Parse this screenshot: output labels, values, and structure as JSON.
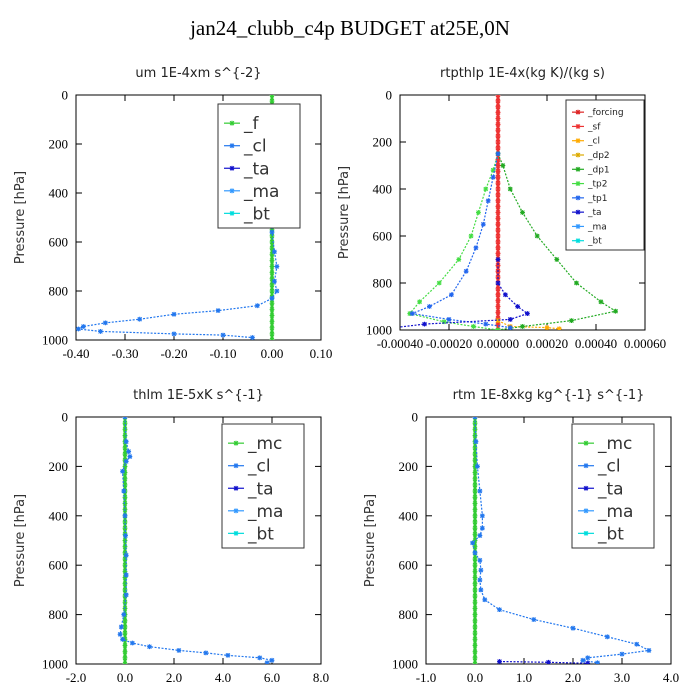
{
  "title": "jan24_clubb_c4p  BUDGET at25E,0N",
  "chart_data": [
    {
      "type": "line",
      "title": "um   1E-4xm s^{-2}",
      "ylabel": "Pressure [hPa]",
      "xlim": [
        -0.4,
        0.1
      ],
      "ylim": [
        1000,
        0
      ],
      "xticks": [
        "-0.40",
        "-0.30",
        "-0.20",
        "-0.10",
        "0.00",
        "0.10"
      ],
      "xtick_values": [
        -0.4,
        -0.3,
        -0.2,
        -0.1,
        0.0,
        0.1
      ],
      "yticks": [
        "0",
        "200",
        "400",
        "600",
        "800",
        "1000"
      ],
      "ytick_values": [
        0,
        200,
        400,
        600,
        800,
        1000
      ],
      "legend": {
        "position": "top-right",
        "size": "large"
      },
      "series": [
        {
          "name": "_f",
          "color": "#33cc33",
          "points": [
            [
              0,
              0
            ],
            [
              0,
              150
            ],
            [
              0,
              300
            ],
            [
              0,
              500
            ],
            [
              0,
              700
            ],
            [
              0,
              900
            ],
            [
              0,
              1000
            ]
          ]
        },
        {
          "name": "_cl",
          "color": "#2277ee",
          "points": [
            [
              0,
              50
            ],
            [
              0.005,
              110
            ],
            [
              0.025,
              130
            ],
            [
              0.035,
              150
            ],
            [
              0.025,
              170
            ],
            [
              0.005,
              195
            ],
            [
              0.01,
              230
            ],
            [
              0.005,
              280
            ],
            [
              0,
              330
            ],
            [
              -0.002,
              400
            ],
            [
              0,
              480
            ],
            [
              0,
              560
            ],
            [
              0.005,
              640
            ],
            [
              0.01,
              700
            ],
            [
              0.005,
              760
            ],
            [
              0.01,
              800
            ],
            [
              0,
              830
            ],
            [
              -0.03,
              860
            ],
            [
              -0.11,
              880
            ],
            [
              -0.2,
              895
            ],
            [
              -0.27,
              915
            ],
            [
              -0.34,
              930
            ],
            [
              -0.385,
              945
            ],
            [
              -0.395,
              955
            ],
            [
              -0.35,
              965
            ],
            [
              -0.2,
              975
            ],
            [
              -0.1,
              980
            ],
            [
              -0.04,
              990
            ]
          ]
        },
        {
          "name": "_ta",
          "color": "#1111cc",
          "points": []
        },
        {
          "name": "_ma",
          "color": "#3399ff",
          "points": []
        },
        {
          "name": "_bt",
          "color": "#00dddd",
          "points": []
        }
      ]
    },
    {
      "type": "line",
      "title": "rtpthlp   1E-4x(kg K)/(kg s)",
      "ylabel": "Pressure [hPa]",
      "xlim": [
        -0.0004,
        0.0006
      ],
      "ylim": [
        1000,
        0
      ],
      "xticks": [
        "-0.00040",
        "-0.00020",
        "0.00000",
        "0.00020",
        "0.00040",
        "0.00060"
      ],
      "xtick_values": [
        -0.0004,
        -0.0002,
        0.0,
        0.0002,
        0.0004,
        0.0006
      ],
      "yticks": [
        "0",
        "200",
        "400",
        "600",
        "800",
        "1000"
      ],
      "ytick_values": [
        0,
        200,
        400,
        600,
        800,
        1000
      ],
      "legend": {
        "position": "top-right",
        "size": "small"
      },
      "series": [
        {
          "name": "_forcing",
          "color": "#dd2222",
          "points": [
            [
              0,
              0
            ],
            [
              0,
              200
            ],
            [
              0,
              400
            ],
            [
              0,
              600
            ],
            [
              0,
              800
            ],
            [
              0,
              1000
            ]
          ]
        },
        {
          "name": "_sf",
          "color": "#ee3333",
          "points": [
            [
              0,
              0
            ],
            [
              0,
              300
            ],
            [
              0,
              600
            ],
            [
              0,
              1000
            ]
          ]
        },
        {
          "name": "_cl",
          "color": "#ffaa00",
          "points": [
            [
              0,
              960
            ],
            [
              5e-05,
              985
            ],
            [
              0.0002,
              990
            ],
            [
              0.00025,
              995
            ]
          ]
        },
        {
          "name": "_dp2",
          "color": "#ddaa00",
          "points": []
        },
        {
          "name": "_dp1",
          "color": "#22aa22",
          "points": [
            [
              0,
              250
            ],
            [
              2e-05,
              300
            ],
            [
              5e-05,
              400
            ],
            [
              0.0001,
              500
            ],
            [
              0.00016,
              600
            ],
            [
              0.00024,
              700
            ],
            [
              0.00032,
              800
            ],
            [
              0.00042,
              880
            ],
            [
              0.00048,
              920
            ],
            [
              0.0003,
              960
            ],
            [
              0.0001,
              985
            ],
            [
              0,
              1000
            ]
          ]
        },
        {
          "name": "_tp2",
          "color": "#44dd44",
          "points": [
            [
              0,
              250
            ],
            [
              -2e-05,
              320
            ],
            [
              -5e-05,
              400
            ],
            [
              -8e-05,
              500
            ],
            [
              -0.00011,
              600
            ],
            [
              -0.00016,
              700
            ],
            [
              -0.00024,
              800
            ],
            [
              -0.00032,
              880
            ],
            [
              -0.00036,
              930
            ],
            [
              -0.00022,
              965
            ],
            [
              -0.0001,
              985
            ],
            [
              0,
              1000
            ]
          ]
        },
        {
          "name": "_tp1",
          "color": "#2266ee",
          "points": [
            [
              0,
              250
            ],
            [
              -2e-05,
              350
            ],
            [
              -4e-05,
              450
            ],
            [
              -6e-05,
              550
            ],
            [
              -9e-05,
              650
            ],
            [
              -0.00013,
              750
            ],
            [
              -0.00019,
              850
            ],
            [
              -0.00028,
              900
            ],
            [
              -0.00035,
              930
            ],
            [
              -0.0002,
              955
            ],
            [
              -5e-05,
              975
            ],
            [
              5e-05,
              990
            ]
          ]
        },
        {
          "name": "_ta",
          "color": "#1111cc",
          "points": [
            [
              0,
              700
            ],
            [
              0,
              800
            ],
            [
              3e-05,
              850
            ],
            [
              8e-05,
              900
            ],
            [
              0.00012,
              930
            ],
            [
              5e-05,
              955
            ],
            [
              -0.0003,
              975
            ],
            [
              -0.00042,
              990
            ]
          ]
        },
        {
          "name": "_ma",
          "color": "#3399ff",
          "points": []
        },
        {
          "name": "_bt",
          "color": "#00dddd",
          "points": []
        }
      ]
    },
    {
      "type": "line",
      "title": "thlm   1E-5xK s^{-1}",
      "ylabel": "Pressure [hPa]",
      "xlim": [
        -2.0,
        8.0
      ],
      "ylim": [
        1000,
        0
      ],
      "xticks": [
        "-2.0",
        "0.0",
        "2.0",
        "4.0",
        "6.0",
        "8.0"
      ],
      "xtick_values": [
        -2,
        0,
        2,
        4,
        6,
        8
      ],
      "yticks": [
        "0",
        "200",
        "400",
        "600",
        "800",
        "1000"
      ],
      "ytick_values": [
        0,
        200,
        400,
        600,
        800,
        1000
      ],
      "legend": {
        "position": "top-right",
        "size": "large"
      },
      "series": [
        {
          "name": "_mc",
          "color": "#33cc33",
          "points": [
            [
              0,
              0
            ],
            [
              0,
              200
            ],
            [
              0,
              400
            ],
            [
              0,
              600
            ],
            [
              0,
              800
            ],
            [
              0,
              1000
            ]
          ]
        },
        {
          "name": "_cl",
          "color": "#2277ee",
          "points": [
            [
              0,
              0
            ],
            [
              0.05,
              100
            ],
            [
              0.15,
              140
            ],
            [
              0.2,
              160
            ],
            [
              0.05,
              180
            ],
            [
              -0.1,
              220
            ],
            [
              -0.05,
              300
            ],
            [
              0,
              400
            ],
            [
              0.02,
              480
            ],
            [
              0.05,
              560
            ],
            [
              0.05,
              640
            ],
            [
              0.05,
              720
            ],
            [
              -0.05,
              800
            ],
            [
              -0.15,
              850
            ],
            [
              -0.2,
              880
            ],
            [
              -0.1,
              900
            ],
            [
              0.3,
              915
            ],
            [
              1.0,
              930
            ],
            [
              2.2,
              945
            ],
            [
              3.3,
              955
            ],
            [
              4.2,
              965
            ],
            [
              5.5,
              975
            ],
            [
              6.0,
              985
            ],
            [
              5.8,
              995
            ]
          ]
        },
        {
          "name": "_ta",
          "color": "#1111cc",
          "points": []
        },
        {
          "name": "_ma",
          "color": "#3399ff",
          "points": []
        },
        {
          "name": "_bt",
          "color": "#00dddd",
          "points": []
        }
      ]
    },
    {
      "type": "line",
      "title": "rtm   1E-8xkg kg^{-1} s^{-1}",
      "ylabel": "Pressure [hPa]",
      "xlim": [
        -1.0,
        4.0
      ],
      "ylim": [
        1000,
        0
      ],
      "xticks": [
        "-1.0",
        "0.0",
        "1.0",
        "2.0",
        "3.0",
        "4.0"
      ],
      "xtick_values": [
        -1,
        0,
        1,
        2,
        3,
        4
      ],
      "yticks": [
        "0",
        "200",
        "400",
        "600",
        "800",
        "1000"
      ],
      "ytick_values": [
        0,
        200,
        400,
        600,
        800,
        1000
      ],
      "legend": {
        "position": "top-right",
        "size": "large"
      },
      "series": [
        {
          "name": "_mc",
          "color": "#33cc33",
          "points": [
            [
              0,
              0
            ],
            [
              0,
              200
            ],
            [
              0,
              400
            ],
            [
              0,
              600
            ],
            [
              0,
              800
            ],
            [
              0,
              1000
            ]
          ]
        },
        {
          "name": "_cl",
          "color": "#2277ee",
          "points": [
            [
              0,
              0
            ],
            [
              0.02,
              100
            ],
            [
              0.05,
              200
            ],
            [
              0.1,
              300
            ],
            [
              0.15,
              400
            ],
            [
              0.15,
              450
            ],
            [
              0.1,
              480
            ],
            [
              -0.05,
              510
            ],
            [
              0,
              550
            ],
            [
              0.1,
              580
            ],
            [
              0.12,
              620
            ],
            [
              0.1,
              660
            ],
            [
              0.12,
              700
            ],
            [
              0.2,
              740
            ],
            [
              0.5,
              780
            ],
            [
              1.2,
              820
            ],
            [
              2.0,
              855
            ],
            [
              2.7,
              890
            ],
            [
              3.3,
              920
            ],
            [
              3.55,
              945
            ],
            [
              3.0,
              960
            ],
            [
              2.3,
              975
            ],
            [
              2.2,
              985
            ],
            [
              2.5,
              995
            ]
          ]
        },
        {
          "name": "_ta",
          "color": "#1111cc",
          "points": [
            [
              0.5,
              990
            ],
            [
              1.5,
              993
            ],
            [
              2.3,
              997
            ]
          ]
        },
        {
          "name": "_ma",
          "color": "#3399ff",
          "points": []
        },
        {
          "name": "_bt",
          "color": "#00dddd",
          "points": []
        }
      ]
    }
  ]
}
